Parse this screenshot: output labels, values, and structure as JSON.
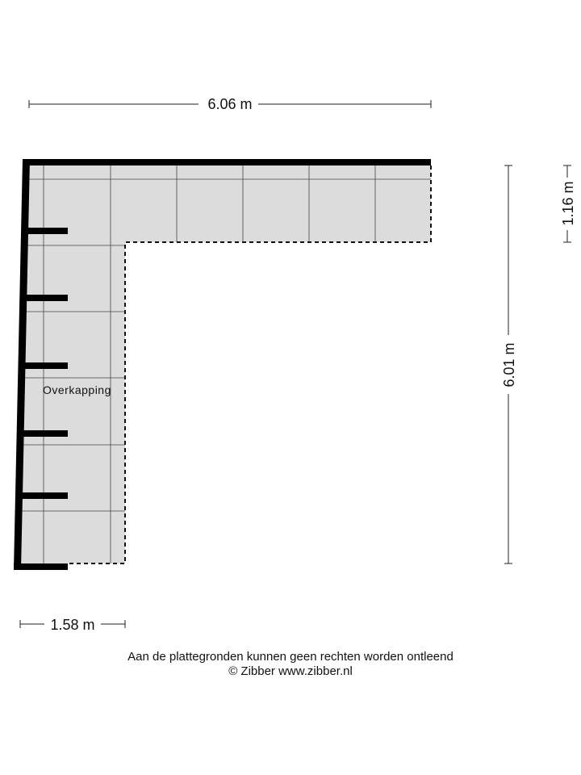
{
  "dimensions": {
    "width_total": "6.06 m",
    "height_total": "6.01 m",
    "top_arm_depth": "1.16 m",
    "left_arm_width": "1.58 m"
  },
  "room": {
    "label": "Overkapping",
    "fill_color": "#dcdcdc"
  },
  "footer": {
    "disclaimer": "Aan de plattegronden kunnen geen rechten worden ontleend",
    "copyright": "© Zibber www.zibber.nl"
  }
}
